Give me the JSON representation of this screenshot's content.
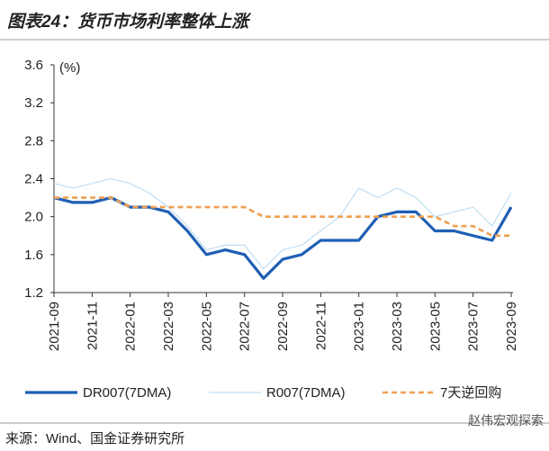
{
  "title": "图表24：货币市场利率整体上涨",
  "source": "来源：Wind、国金证券研究所",
  "watermark": "赵伟宏观探索",
  "chart_data": {
    "type": "line",
    "y_label": "(%)",
    "x": [
      "2021-09",
      "2021-10",
      "2021-11",
      "2021-12",
      "2022-01",
      "2022-02",
      "2022-03",
      "2022-04",
      "2022-05",
      "2022-06",
      "2022-07",
      "2022-08",
      "2022-09",
      "2022-10",
      "2022-11",
      "2022-12",
      "2023-01",
      "2023-02",
      "2023-03",
      "2023-04",
      "2023-05",
      "2023-06",
      "2023-07",
      "2023-08",
      "2023-09"
    ],
    "xticks": [
      "2021-09",
      "2021-11",
      "2022-01",
      "2022-03",
      "2022-05",
      "2022-07",
      "2022-09",
      "2022-11",
      "2023-01",
      "2023-03",
      "2023-05",
      "2023-07",
      "2023-09"
    ],
    "ylim": [
      1.2,
      3.6
    ],
    "yticks": [
      1.2,
      1.6,
      {
        "value": 2,
        "label": "2.0"
      },
      2.4,
      2.8,
      3.2,
      3.6
    ],
    "series": [
      {
        "name": "DR007(7DMA)",
        "color": "#1f5fb4",
        "values": [
          2.2,
          2.15,
          2.15,
          2.2,
          2.1,
          2.1,
          2.05,
          1.85,
          1.6,
          1.65,
          1.6,
          1.35,
          1.55,
          1.6,
          1.75,
          1.75,
          1.75,
          2.0,
          2.05,
          2.05,
          1.85,
          1.85,
          1.8,
          1.75,
          2.1
        ]
      },
      {
        "name": "R007(7DMA)",
        "color": "#c2e0f4",
        "values": [
          2.35,
          2.3,
          2.35,
          2.4,
          2.35,
          2.25,
          2.1,
          1.9,
          1.65,
          1.7,
          1.7,
          1.45,
          1.65,
          1.7,
          1.85,
          2.0,
          2.3,
          2.2,
          2.3,
          2.2,
          2.0,
          2.05,
          2.1,
          1.9,
          2.25
        ]
      },
      {
        "name": "7天逆回购",
        "color": "#f0a050",
        "values": [
          2.2,
          2.2,
          2.2,
          2.2,
          2.1,
          2.1,
          2.1,
          2.1,
          2.1,
          2.1,
          2.1,
          2.0,
          2.0,
          2.0,
          2.0,
          2.0,
          2.0,
          2.0,
          2.0,
          2.0,
          2.0,
          1.9,
          1.9,
          1.8,
          1.8
        ]
      }
    ]
  }
}
